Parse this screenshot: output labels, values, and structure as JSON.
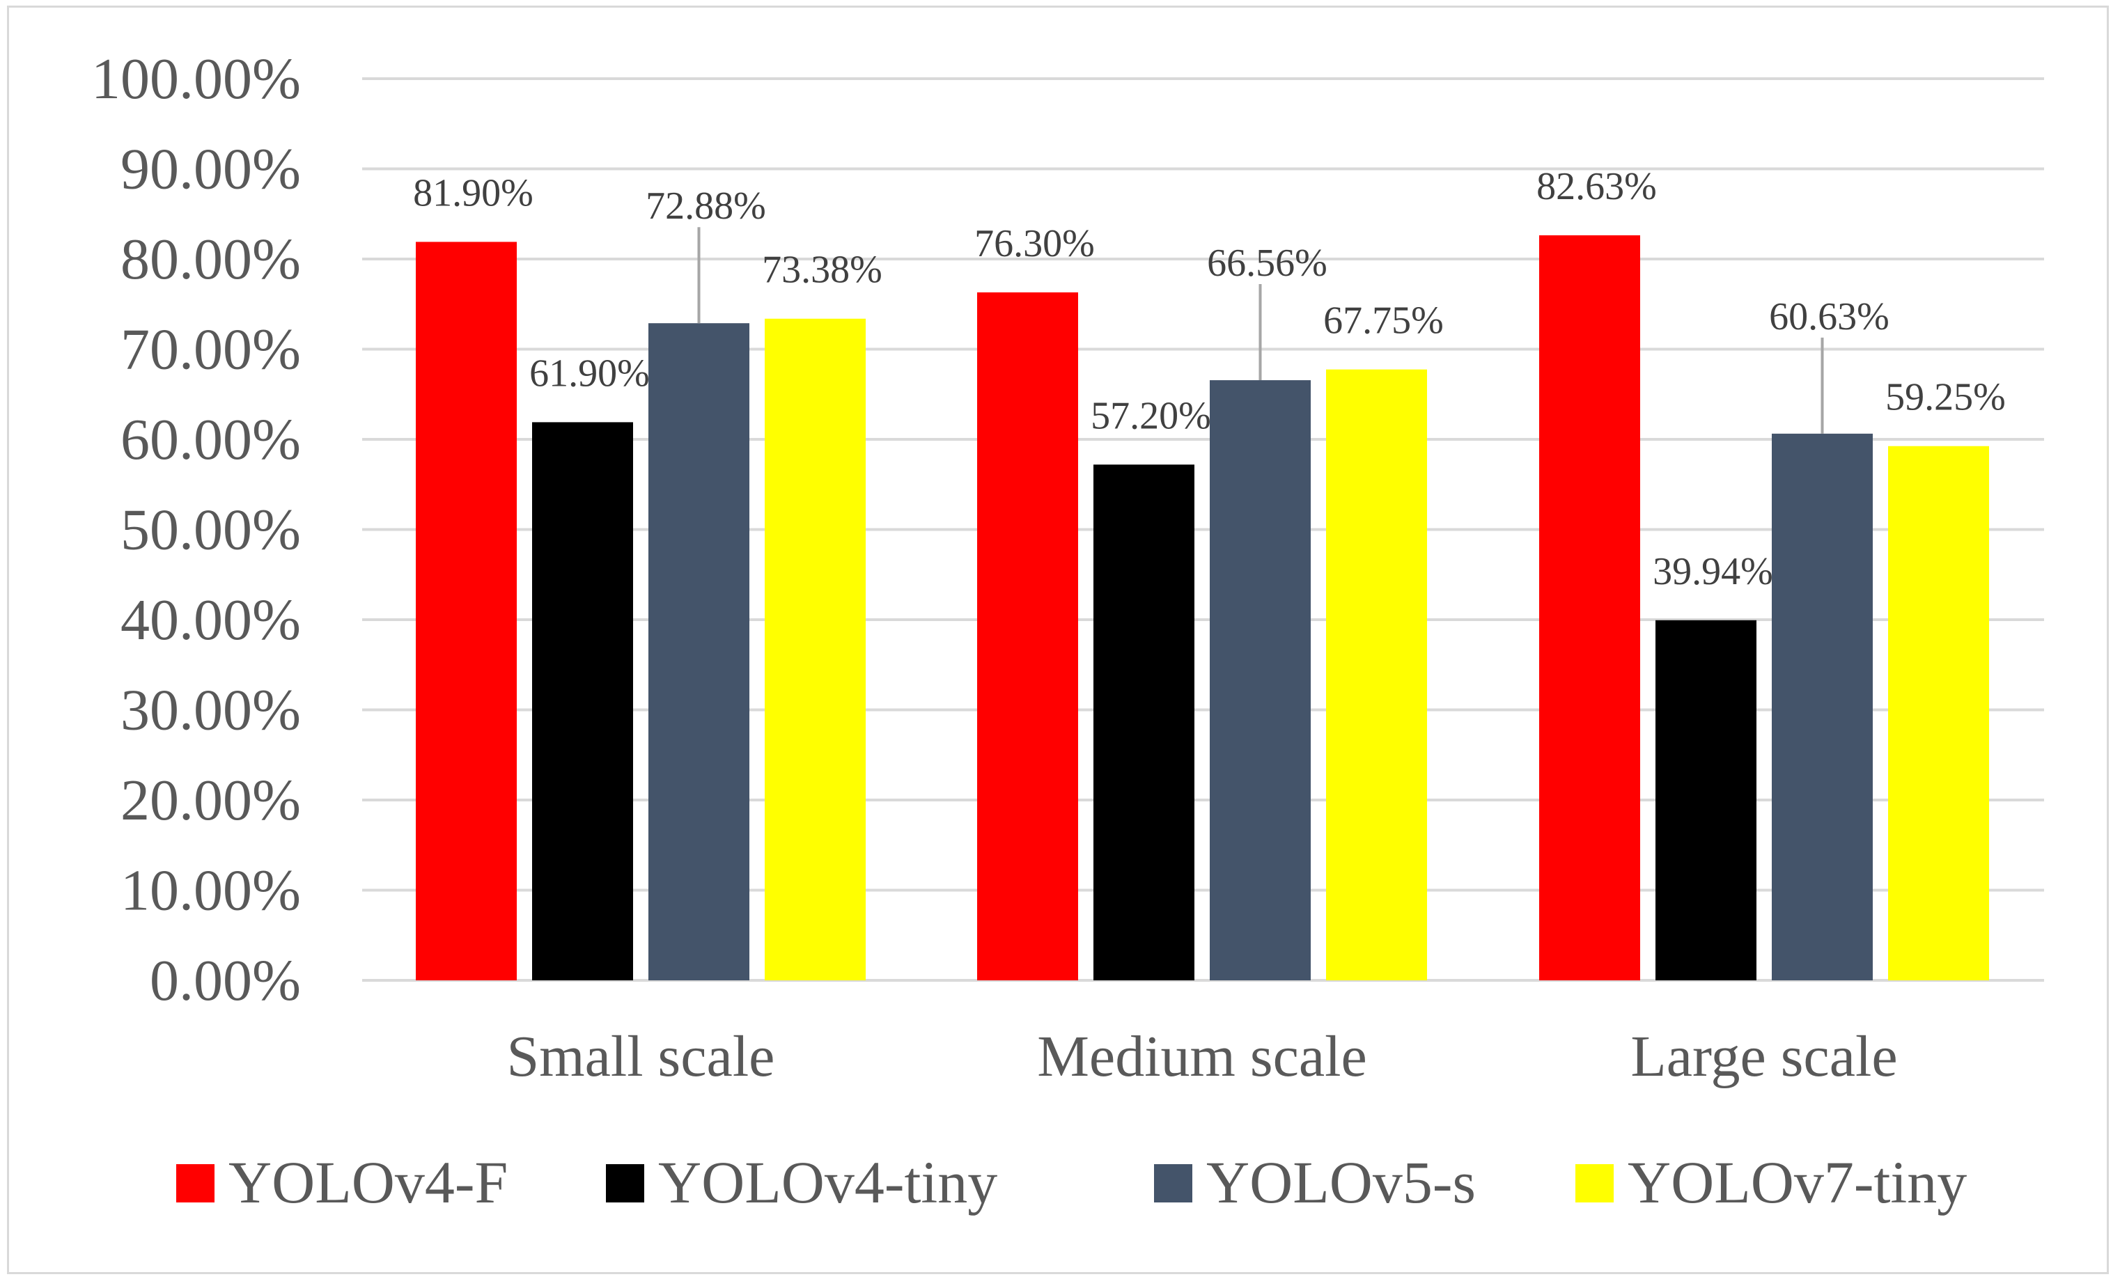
{
  "chart_data": {
    "type": "bar",
    "title": "",
    "xlabel": "",
    "ylabel": "",
    "categories": [
      "Small scale",
      "Medium scale",
      "Large scale"
    ],
    "series": [
      {
        "name": "YOLOv4-F",
        "color": "#ff0000",
        "values": [
          81.9,
          76.3,
          82.63
        ],
        "labels": [
          "81.90%",
          "76.30%",
          "82.63%"
        ]
      },
      {
        "name": "YOLOv4-tiny",
        "color": "#000000",
        "values": [
          61.9,
          57.2,
          39.94
        ],
        "labels": [
          "61.90%",
          "57.20%",
          "39.94%"
        ]
      },
      {
        "name": "YOLOv5-s",
        "color": "#44546a",
        "values": [
          72.88,
          66.56,
          60.63
        ],
        "labels": [
          "72.88%",
          "66.56%",
          "60.63%"
        ]
      },
      {
        "name": "YOLOv7-tiny",
        "color": "#ffff00",
        "values": [
          73.38,
          67.75,
          59.25
        ],
        "labels": [
          "73.38%",
          "67.75%",
          "59.25%"
        ]
      }
    ],
    "ylim": [
      0,
      100
    ],
    "yticks": [
      0,
      10,
      20,
      30,
      40,
      50,
      60,
      70,
      80,
      90,
      100
    ],
    "ytick_labels": [
      "0.00%",
      "10.00%",
      "20.00%",
      "30.00%",
      "40.00%",
      "50.00%",
      "60.00%",
      "70.00%",
      "80.00%",
      "90.00%",
      "100.00%"
    ],
    "grid": true,
    "legend_position": "bottom",
    "gridline_color": "#d9d9d9",
    "leader_line_color": "#a6a6a6"
  }
}
